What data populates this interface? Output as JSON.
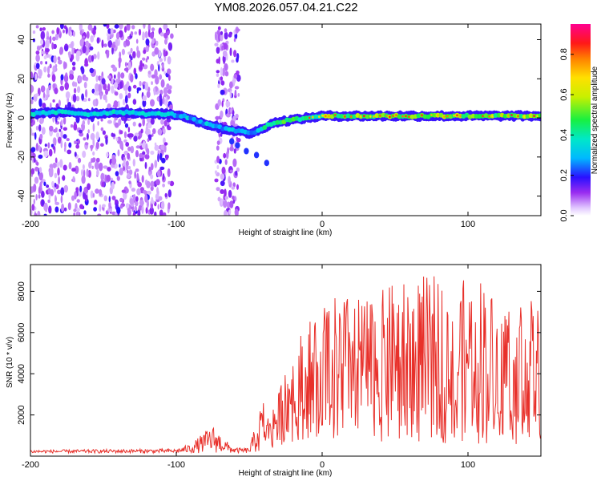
{
  "title": "YM08.2026.057.04.21.C22",
  "chart_data": [
    {
      "type": "heatmap",
      "name": "spectrogram",
      "xlabel": "Height of straight line (km)",
      "ylabel": "Frequency (Hz)",
      "xlim": [
        -200,
        150
      ],
      "ylim": [
        -50,
        48
      ],
      "xticks": [
        -200,
        -100,
        0,
        100
      ],
      "xtick_labels": [
        "-200",
        "-100",
        "0",
        "100"
      ],
      "yticks": [
        -40,
        -20,
        0,
        20,
        40
      ],
      "ytick_labels": [
        "-40",
        "-20",
        "0",
        "20",
        "40"
      ],
      "ridge": {
        "x": [
          -200,
          -180,
          -160,
          -140,
          -120,
          -105,
          -95,
          -85,
          -75,
          -65,
          -55,
          -50,
          -45,
          -40,
          -35,
          -30,
          -20,
          -10,
          0,
          20,
          50,
          100,
          150
        ],
        "y": [
          2,
          3,
          2,
          3,
          2,
          2,
          1,
          -2,
          -4,
          -6,
          -7,
          -8,
          -7,
          -5,
          -3,
          -2,
          -1,
          0,
          1,
          1,
          1,
          1,
          1
        ]
      },
      "noise_bands": [
        [
          -200,
          -103
        ],
        [
          -73,
          -57
        ]
      ],
      "colorbar": {
        "label": "Normalized spectral amplitude",
        "range": [
          0.0,
          0.95
        ],
        "ticks": [
          0.0,
          0.2,
          0.4,
          0.6,
          0.8
        ],
        "tick_labels": [
          "0.0",
          "0.2",
          "0.4",
          "0.6",
          "0.8"
        ]
      }
    },
    {
      "type": "line",
      "name": "snr",
      "xlabel": "Height of straight line (km)",
      "ylabel": "SNR (10 * v/v)",
      "xlim": [
        -200,
        150
      ],
      "ylim": [
        0,
        9300
      ],
      "xticks": [
        -200,
        -100,
        0,
        100
      ],
      "xtick_labels": [
        "-200",
        "-100",
        "0",
        "100"
      ],
      "yticks": [
        2000,
        4000,
        6000,
        8000
      ],
      "ytick_labels": [
        "2000",
        "4000",
        "6000",
        "8000"
      ],
      "color": "#e8302a",
      "envelope": {
        "x": [
          -200,
          -110,
          -100,
          -90,
          -85,
          -80,
          -75,
          -70,
          -65,
          -60,
          -50,
          -40,
          -38,
          -35,
          -30,
          -25,
          -20,
          -15,
          -10,
          -5,
          0,
          10,
          20,
          30,
          40,
          50,
          60,
          70,
          80,
          90,
          100,
          110,
          120,
          130,
          140,
          150
        ],
        "y": [
          300,
          350,
          350,
          600,
          900,
          1200,
          1500,
          1100,
          700,
          400,
          400,
          3000,
          1800,
          2400,
          3000,
          4800,
          5500,
          6000,
          6500,
          7000,
          7500,
          7800,
          7800,
          7600,
          8000,
          8500,
          8500,
          8800,
          8700,
          8500,
          8600,
          8800,
          7500,
          8000,
          7800,
          7200
        ]
      },
      "floor": {
        "x": [
          -200,
          -40,
          -38,
          -20,
          0,
          40,
          100,
          150
        ],
        "y": [
          150,
          150,
          300,
          700,
          800,
          700,
          600,
          500
        ]
      }
    }
  ]
}
